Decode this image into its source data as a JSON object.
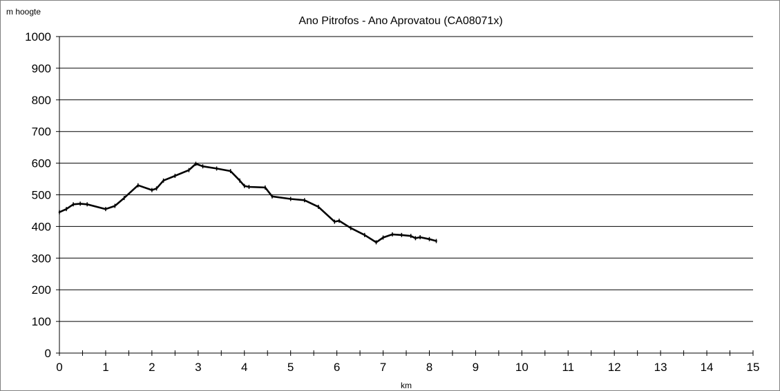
{
  "chart_data": {
    "type": "line",
    "title": "Ano Pitrofos - Ano Aprovatou (CA08071x)",
    "ylabel": "m hoogte",
    "xlabel": "km",
    "xlim": [
      0,
      15
    ],
    "ylim": [
      0,
      1000
    ],
    "x_ticks": [
      0,
      1,
      2,
      3,
      4,
      5,
      6,
      7,
      8,
      9,
      10,
      11,
      12,
      13,
      14,
      15
    ],
    "y_ticks": [
      0,
      100,
      200,
      300,
      400,
      500,
      600,
      700,
      800,
      900,
      1000
    ],
    "grid": "horizontal",
    "legend": "none",
    "series": [
      {
        "color": "#000000",
        "x": [
          0,
          0.15,
          0.3,
          0.45,
          0.6,
          1.0,
          1.2,
          1.4,
          1.7,
          2.0,
          2.1,
          2.25,
          2.5,
          2.8,
          2.95,
          3.1,
          3.4,
          3.7,
          3.9,
          4.0,
          4.1,
          4.45,
          4.6,
          5.0,
          5.3,
          5.6,
          5.95,
          6.05,
          6.3,
          6.6,
          6.85,
          7.0,
          7.2,
          7.4,
          7.6,
          7.7,
          7.8,
          8.0,
          8.15
        ],
        "y": [
          445,
          455,
          470,
          472,
          470,
          455,
          465,
          490,
          530,
          515,
          520,
          545,
          560,
          578,
          598,
          590,
          583,
          575,
          545,
          528,
          525,
          523,
          495,
          487,
          483,
          462,
          415,
          418,
          395,
          373,
          350,
          365,
          375,
          373,
          370,
          363,
          366,
          360,
          354
        ]
      }
    ]
  }
}
